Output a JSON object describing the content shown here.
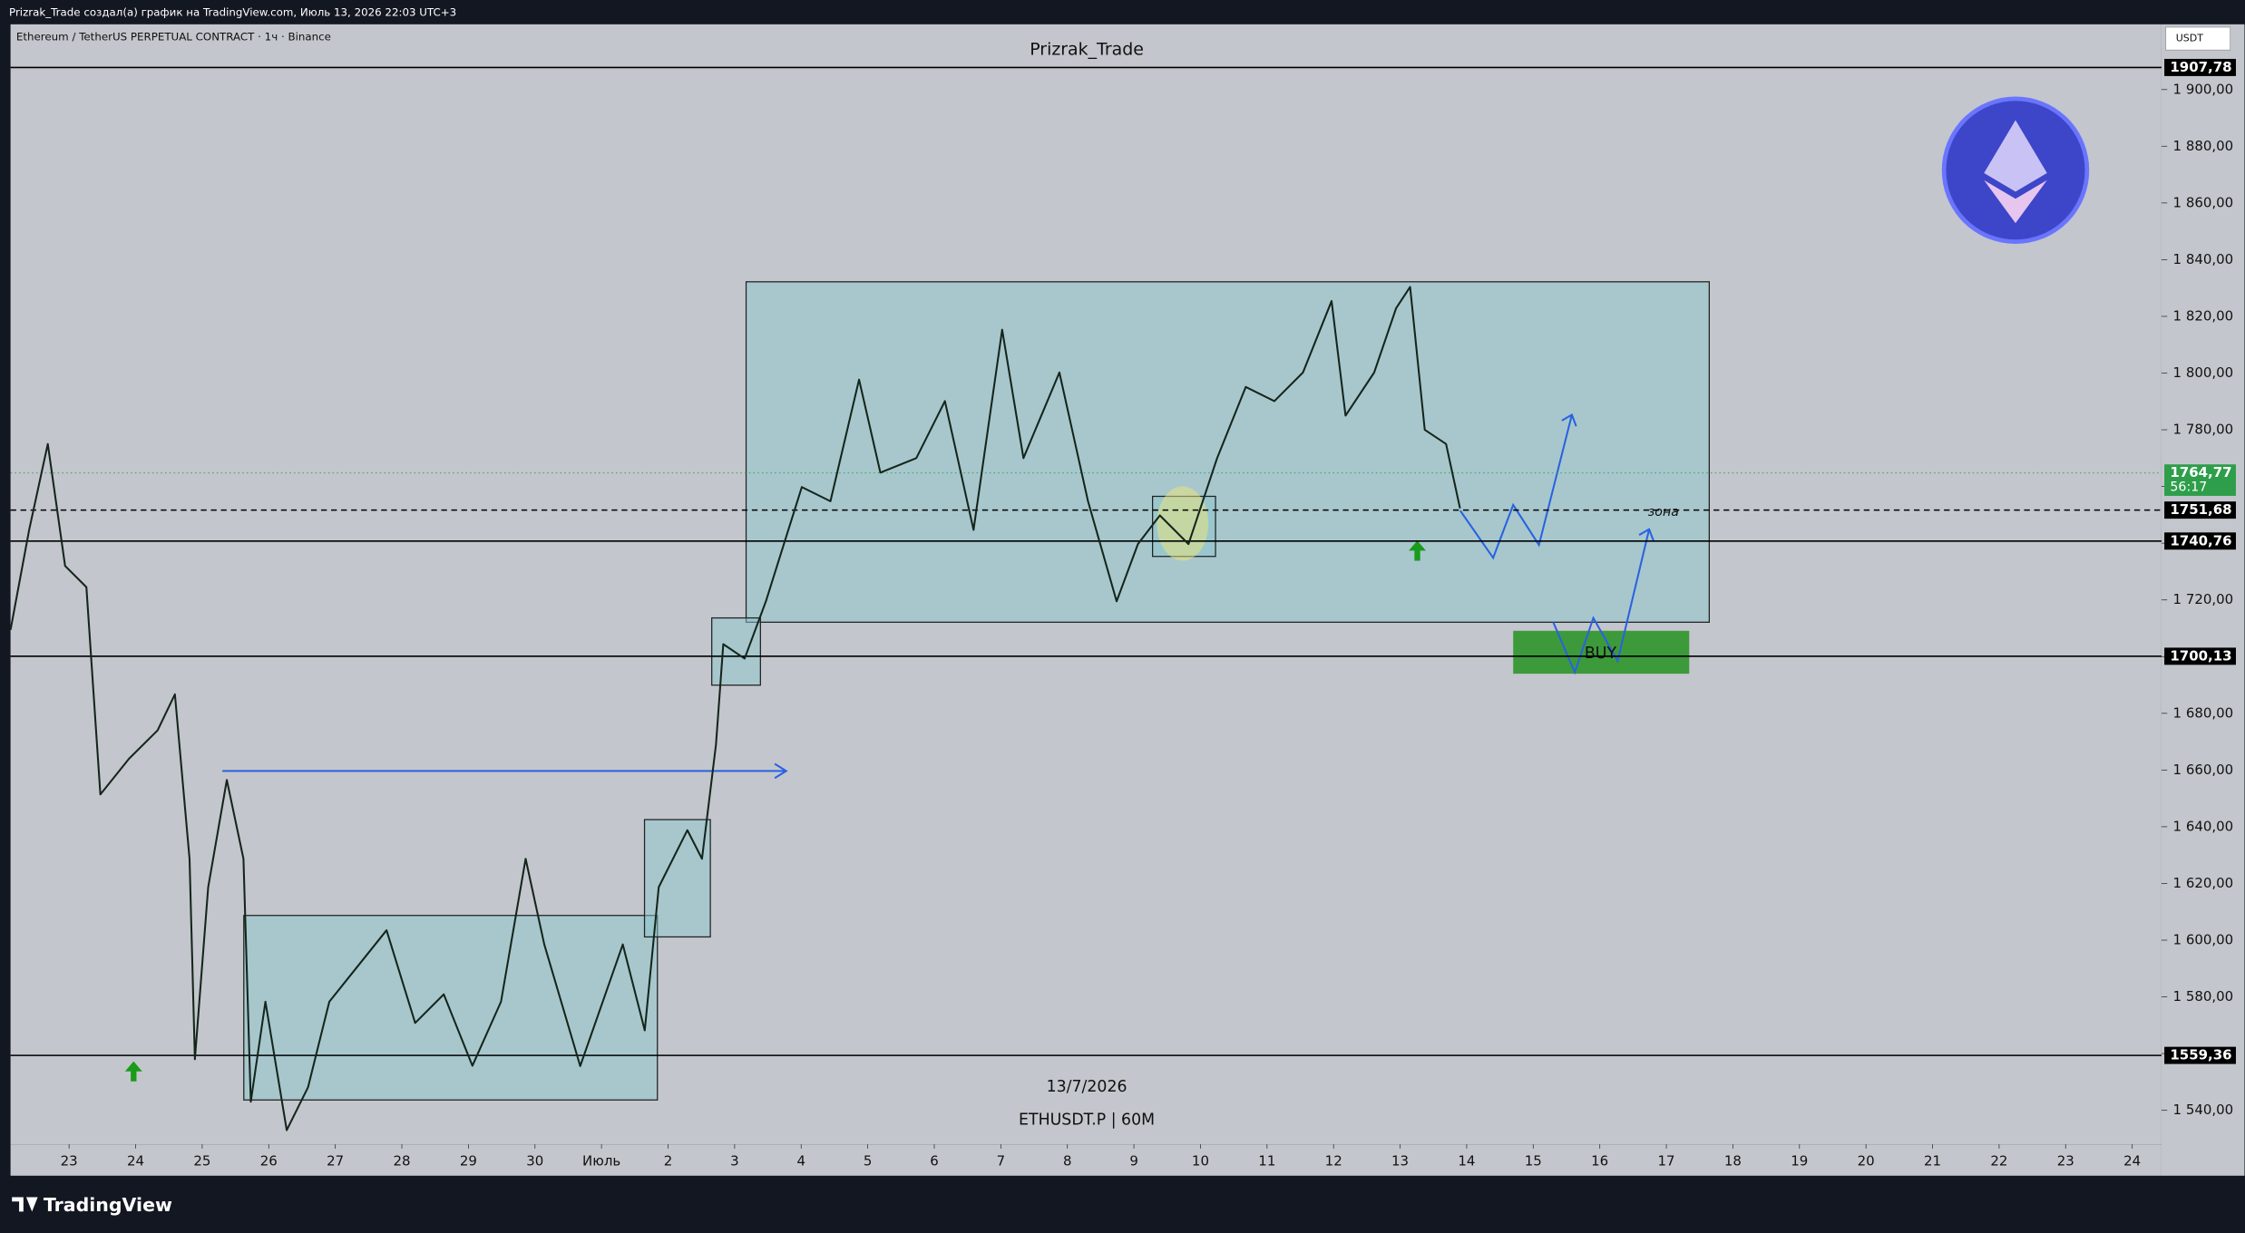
{
  "header": {
    "author_line": "Prizrak_Trade создал(а) график на TradingView.com, Июль 13, 2026 22:03 UTC+3",
    "symbol": "Ethereum / TetherUS PERPETUAL CONTRACT · 1ч · Binance",
    "currency": "USDT"
  },
  "footer": {
    "brand": "TradingView"
  },
  "chart_data": {
    "type": "line",
    "title": "Prizrak_Trade",
    "color": "#15251b",
    "annotations": {
      "zone": "зона",
      "buy": "BUY",
      "date": "13/7/2026",
      "ticker": "ETHUSDT.P | 60M"
    },
    "x": [
      -0.88,
      -0.6,
      -0.32,
      -0.06,
      0.26,
      0.47,
      0.9,
      1.33,
      1.59,
      1.81,
      1.89,
      2.09,
      2.37,
      2.62,
      2.73,
      2.95,
      3.27,
      3.59,
      3.91,
      4.77,
      5.2,
      5.63,
      6.06,
      6.49,
      6.86,
      7.14,
      7.68,
      8.32,
      8.65,
      8.86,
      9.29,
      9.51,
      9.72,
      9.83,
      10.15,
      10.47,
      11.01,
      11.44,
      11.87,
      12.19,
      12.73,
      13.16,
      13.59,
      14.02,
      14.34,
      14.88,
      15.31,
      15.74,
      16.06,
      16.39,
      16.82,
      17.25,
      17.68,
      18.11,
      18.54,
      18.97,
      19.18,
      19.61,
      19.94,
      20.15,
      20.37,
      20.69,
      20.9
    ],
    "values": [
      1709.4,
      1744.7,
      1775,
      1732,
      1724.5,
      1651.4,
      1664,
      1674,
      1686.7,
      1628.7,
      1558,
      1618.7,
      1656.5,
      1628.7,
      1543,
      1578.3,
      1533,
      1548.1,
      1578.3,
      1603.5,
      1570.8,
      1580.9,
      1555.7,
      1578.3,
      1628.7,
      1598.5,
      1555.6,
      1598.5,
      1568.2,
      1618.7,
      1638.8,
      1628.7,
      1669,
      1704.4,
      1699.3,
      1719.5,
      1759.8,
      1754.8,
      1797.7,
      1764.9,
      1770,
      1790.1,
      1744.7,
      1815.3,
      1770,
      1800.2,
      1754.8,
      1719.5,
      1739.7,
      1749.8,
      1739.7,
      1770,
      1795.1,
      1790.1,
      1800.2,
      1825.4,
      1785,
      1800.2,
      1822.9,
      1830.4,
      1780,
      1775,
      1752.3
    ],
    "xlim": [
      -0.88,
      31.44
    ],
    "ylim": [
      1528,
      1923
    ],
    "xticks": [
      {
        "value": 0,
        "label": "23"
      },
      {
        "value": 1,
        "label": "24"
      },
      {
        "value": 2,
        "label": "25"
      },
      {
        "value": 3,
        "label": "26"
      },
      {
        "value": 4,
        "label": "27"
      },
      {
        "value": 5,
        "label": "28"
      },
      {
        "value": 6,
        "label": "29"
      },
      {
        "value": 7,
        "label": "30"
      },
      {
        "value": 8,
        "label": "Июль"
      },
      {
        "value": 9,
        "label": "2"
      },
      {
        "value": 10,
        "label": "3"
      },
      {
        "value": 11,
        "label": "4"
      },
      {
        "value": 12,
        "label": "5"
      },
      {
        "value": 13,
        "label": "6"
      },
      {
        "value": 14,
        "label": "7"
      },
      {
        "value": 15,
        "label": "8"
      },
      {
        "value": 16,
        "label": "9"
      },
      {
        "value": 17,
        "label": "10"
      },
      {
        "value": 18,
        "label": "11"
      },
      {
        "value": 19,
        "label": "12"
      },
      {
        "value": 20,
        "label": "13"
      },
      {
        "value": 21,
        "label": "14"
      },
      {
        "value": 22,
        "label": "15"
      },
      {
        "value": 23,
        "label": "16"
      },
      {
        "value": 24,
        "label": "17"
      },
      {
        "value": 25,
        "label": "18"
      },
      {
        "value": 26,
        "label": "19"
      },
      {
        "value": 27,
        "label": "20"
      },
      {
        "value": 28,
        "label": "21"
      },
      {
        "value": 29,
        "label": "22"
      },
      {
        "value": 30,
        "label": "23"
      },
      {
        "value": 31,
        "label": "24"
      }
    ],
    "yticks": [
      {
        "value": 1540,
        "label": "1 540,00"
      },
      {
        "value": 1560,
        "label": "1 560,00"
      },
      {
        "value": 1580,
        "label": "1 580,00"
      },
      {
        "value": 1600,
        "label": "1 600,00"
      },
      {
        "value": 1620,
        "label": "1 620,00"
      },
      {
        "value": 1640,
        "label": "1 640,00"
      },
      {
        "value": 1660,
        "label": "1 660,00"
      },
      {
        "value": 1680,
        "label": "1 680,00"
      },
      {
        "value": 1700,
        "label": "1 700,00"
      },
      {
        "value": 1720,
        "label": "1 720,00"
      },
      {
        "value": 1740,
        "label": "1 740,00"
      },
      {
        "value": 1760,
        "label": "1 760,00"
      },
      {
        "value": 1780,
        "label": "1 780,00"
      },
      {
        "value": 1800,
        "label": "1 800,00"
      },
      {
        "value": 1820,
        "label": "1 820,00"
      },
      {
        "value": 1840,
        "label": "1 840,00"
      },
      {
        "value": 1860,
        "label": "1 860,00"
      },
      {
        "value": 1880,
        "label": "1 880,00"
      },
      {
        "value": 1900,
        "label": "1 900,00"
      }
    ],
    "levels": [
      {
        "value": 1907.78,
        "label": "1907,78",
        "line": "solid",
        "color": "#000000"
      },
      {
        "value": 1764.77,
        "label": "1764,77",
        "line": "dotted",
        "color": "#2e9e4a",
        "countdown": "56:17"
      },
      {
        "value": 1751.68,
        "label": "1751,68",
        "line": "dashed",
        "color": "#000000"
      },
      {
        "value": 1740.76,
        "label": "1740,76",
        "line": "solid",
        "color": "#000000"
      },
      {
        "value": 1700.13,
        "label": "1700,13",
        "line": "solid",
        "color": "#000000"
      },
      {
        "value": 1559.36,
        "label": "1559,36",
        "line": "solid",
        "color": "#000000"
      }
    ]
  }
}
